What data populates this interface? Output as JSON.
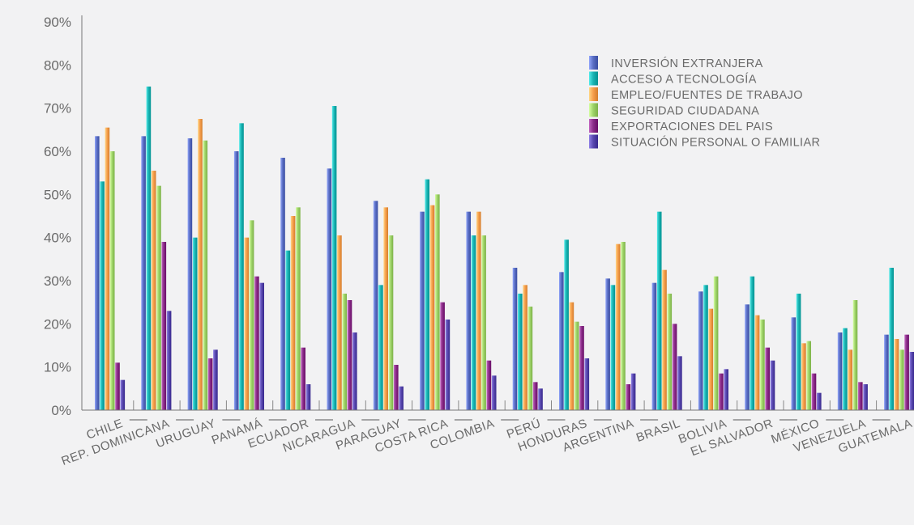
{
  "chart_data": {
    "type": "bar",
    "title": "",
    "xlabel": "",
    "ylabel": "",
    "ylim": [
      0,
      90
    ],
    "yticks": [
      "0%",
      "10%",
      "20%",
      "30%",
      "40%",
      "50%",
      "60%",
      "70%",
      "80%",
      "90%"
    ],
    "legend_position": "top-right",
    "grid": false,
    "categories": [
      "CHILE",
      "REP. DOMINICANA",
      "URUGUAY",
      "PANAMÁ",
      "ECUADOR",
      "NICARAGUA",
      "PARAGUAY",
      "COSTA RICA",
      "COLOMBIA",
      "PERÚ",
      "HONDURAS",
      "ARGENTINA",
      "BRASIL",
      "BOLIVIA",
      "EL SALVADOR",
      "MÉXICO",
      "VENEZUELA",
      "GUATEMALA"
    ],
    "series": [
      {
        "name": "INVERSIÓN EXTRANJERA",
        "color": "#5b6fc4",
        "values": [
          63.5,
          63.5,
          63,
          60,
          58.5,
          56,
          48.5,
          46,
          46,
          33,
          32,
          30.5,
          29.5,
          27.5,
          24.5,
          21.5,
          18,
          17.5
        ]
      },
      {
        "name": "ACCESO A TECNOLOGÍA",
        "color": "#1cb5b4",
        "values": [
          53,
          75,
          40,
          66.5,
          37,
          70.5,
          29,
          53.5,
          40.5,
          27,
          39.5,
          29,
          46,
          29,
          31,
          27,
          19,
          33
        ]
      },
      {
        "name": "EMPLEO/FUENTES DE TRABAJO",
        "color": "#f7a04e",
        "values": [
          65.5,
          55.5,
          67.5,
          40,
          45,
          40.5,
          47,
          47.5,
          46,
          29,
          25,
          38.5,
          32.5,
          23.5,
          22,
          15.5,
          14,
          16.5
        ]
      },
      {
        "name": "SEGURIDAD CIUDADANA",
        "color": "#9fd46a",
        "values": [
          60,
          52,
          62.5,
          44,
          47,
          27,
          40.5,
          50,
          40.5,
          24,
          20.5,
          39,
          27,
          31,
          21,
          16,
          25.5,
          14
        ]
      },
      {
        "name": "EXPORTACIONES DEL PAIS",
        "color": "#8c2f8a",
        "values": [
          11,
          39,
          12,
          31,
          14.5,
          25.5,
          10.5,
          25,
          11.5,
          6.5,
          19.5,
          6,
          20,
          8.5,
          14.5,
          8.5,
          6.5,
          17.5
        ]
      },
      {
        "name": "SITUACIÓN PERSONAL O FAMILIAR",
        "color": "#5a4ab0",
        "values": [
          7,
          23,
          14,
          29.5,
          6,
          18,
          5.5,
          21,
          8,
          5,
          12,
          8.5,
          12.5,
          9.5,
          11.5,
          4,
          6,
          13.5
        ]
      }
    ]
  }
}
